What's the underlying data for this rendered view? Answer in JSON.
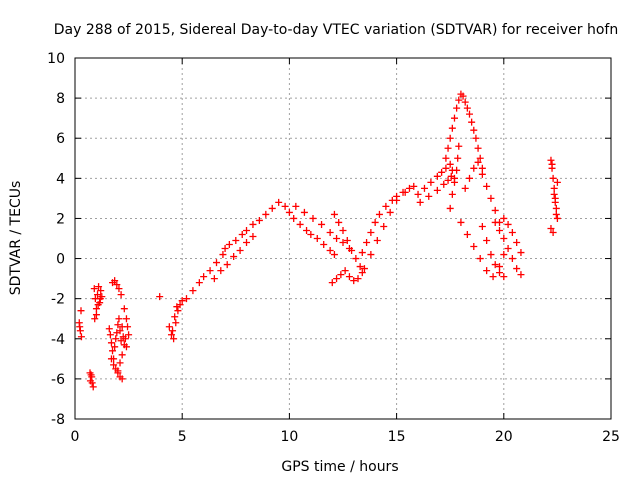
{
  "chart_data": {
    "type": "scatter",
    "title": "Day 288 of 2015, Sidereal Day-to-day VTEC variation (SDTVAR) for receiver hofn",
    "xlabel": "GPS time / hours",
    "ylabel": "SDTVAR / TECUs",
    "xlim": [
      0,
      25
    ],
    "ylim": [
      -8,
      10
    ],
    "x_ticks": [
      0,
      5,
      10,
      15,
      20,
      25
    ],
    "x_tick_labels": [
      "0",
      "5",
      "10",
      "15",
      "20",
      "25"
    ],
    "y_ticks": [
      -8,
      -6,
      -4,
      -2,
      0,
      2,
      4,
      6,
      8,
      10
    ],
    "y_tick_labels": [
      "-8",
      "-6",
      "-4",
      "-2",
      "0",
      "2",
      "4",
      "6",
      "8",
      "10"
    ],
    "grid": true,
    "marker": "+",
    "color": "#ff0000",
    "series": [
      {
        "name": "SDTVAR",
        "x": [
          0.2,
          0.25,
          0.3,
          0.22,
          0.28,
          0.7,
          0.75,
          0.8,
          0.85,
          0.72,
          0.78,
          0.9,
          0.95,
          1.0,
          1.05,
          1.1,
          1.15,
          1.2,
          1.25,
          0.92,
          1.0,
          1.08,
          1.18,
          1.6,
          1.65,
          1.7,
          1.75,
          1.8,
          1.85,
          1.9,
          1.95,
          2.0,
          2.05,
          2.1,
          2.15,
          2.2,
          2.25,
          2.3,
          2.35,
          2.4,
          1.7,
          1.8,
          1.9,
          2.0,
          2.1,
          2.2,
          1.75,
          1.85,
          1.95,
          2.05,
          2.15,
          2.0,
          2.1,
          2.2,
          2.3,
          2.4,
          2.45,
          2.5,
          3.95,
          4.4,
          4.5,
          4.6,
          4.7,
          4.8,
          4.9,
          5.0,
          4.55,
          4.65,
          4.75,
          5.2,
          5.5,
          5.8,
          6.0,
          6.3,
          6.6,
          6.9,
          7.0,
          7.2,
          7.5,
          7.8,
          8.0,
          8.3,
          8.6,
          8.9,
          9.2,
          9.5,
          9.8,
          10.0,
          6.5,
          6.8,
          7.1,
          7.4,
          7.7,
          8.0,
          8.3,
          10.2,
          10.5,
          10.8,
          11.0,
          11.3,
          11.6,
          11.9,
          12.1,
          10.3,
          10.7,
          11.1,
          11.5,
          11.9,
          12.2,
          12.5,
          12.8,
          12.0,
          12.2,
          12.4,
          12.6,
          12.8,
          13.0,
          13.2,
          13.4,
          12.1,
          12.3,
          12.5,
          12.7,
          12.9,
          13.1,
          13.3,
          13.4,
          13.6,
          13.8,
          14.0,
          14.2,
          14.5,
          14.8,
          15.0,
          15.3,
          15.6,
          13.5,
          13.8,
          14.1,
          14.4,
          14.7,
          15.0,
          15.4,
          15.8,
          16.0,
          16.3,
          16.6,
          16.9,
          17.1,
          17.3,
          17.5,
          17.6,
          17.7,
          16.1,
          16.5,
          16.9,
          17.2,
          17.4,
          17.55,
          17.3,
          17.4,
          17.5,
          17.6,
          17.7,
          17.8,
          17.9,
          18.0,
          18.1,
          18.2,
          18.3,
          18.4,
          18.5,
          18.6,
          18.7,
          18.8,
          18.9,
          19.0,
          17.5,
          17.6,
          17.7,
          17.8,
          17.85,
          17.9,
          18.0,
          18.3,
          18.6,
          18.9,
          19.2,
          19.5,
          19.8,
          20.0,
          18.2,
          18.4,
          18.6,
          18.8,
          19.0,
          19.2,
          19.4,
          19.6,
          19.8,
          19.0,
          19.2,
          19.4,
          19.6,
          19.8,
          20.0,
          19.6,
          19.8,
          20.0,
          20.2,
          20.4,
          20.6,
          20.8,
          20.0,
          20.2,
          20.4,
          20.6,
          20.8,
          22.2,
          22.25,
          22.3,
          22.35,
          22.4,
          22.45,
          22.5,
          22.2,
          22.3,
          22.4,
          22.5,
          22.25,
          22.35,
          22.45
        ],
        "y": [
          -3.2,
          -3.6,
          -3.9,
          -3.4,
          -2.6,
          -5.7,
          -5.8,
          -6.2,
          -6.4,
          -6.1,
          -5.9,
          -1.5,
          -2.0,
          -2.5,
          -1.8,
          -1.4,
          -2.2,
          -1.6,
          -1.9,
          -3.0,
          -2.8,
          -2.3,
          -2.0,
          -3.5,
          -3.8,
          -4.2,
          -4.6,
          -5.0,
          -4.4,
          -4.0,
          -3.7,
          -3.3,
          -3.0,
          -3.6,
          -4.1,
          -3.4,
          -3.9,
          -4.3,
          -4.0,
          -4.4,
          -5.0,
          -5.3,
          -5.5,
          -5.7,
          -5.9,
          -6.0,
          -1.2,
          -1.1,
          -1.3,
          -1.5,
          -1.8,
          -5.6,
          -5.2,
          -4.8,
          -2.5,
          -3.0,
          -3.4,
          -3.8,
          -1.9,
          -3.4,
          -3.8,
          -4.0,
          -3.2,
          -2.6,
          -2.3,
          -2.1,
          -3.6,
          -2.9,
          -2.4,
          -2.0,
          -1.6,
          -1.2,
          -0.9,
          -0.6,
          -0.2,
          0.2,
          0.5,
          0.7,
          0.9,
          1.2,
          1.4,
          1.7,
          1.9,
          2.2,
          2.5,
          2.8,
          2.6,
          2.3,
          -1.0,
          -0.6,
          -0.3,
          0.1,
          0.4,
          0.8,
          1.1,
          2.0,
          1.7,
          1.4,
          1.2,
          1.0,
          0.7,
          0.4,
          0.2,
          2.6,
          2.3,
          2.0,
          1.7,
          1.3,
          1.0,
          0.8,
          0.5,
          -1.2,
          -1.0,
          -0.8,
          -0.6,
          -0.9,
          -1.1,
          -1.0,
          -0.7,
          2.2,
          1.8,
          1.4,
          0.9,
          0.4,
          0.0,
          -0.4,
          0.3,
          0.8,
          1.3,
          1.8,
          2.2,
          2.6,
          2.9,
          3.1,
          3.3,
          3.5,
          -0.5,
          0.2,
          0.9,
          1.6,
          2.3,
          2.9,
          3.3,
          3.6,
          3.2,
          3.5,
          3.8,
          4.1,
          4.3,
          4.5,
          4.7,
          4.4,
          4.0,
          2.8,
          3.1,
          3.4,
          3.7,
          3.9,
          4.1,
          5.0,
          5.5,
          6.0,
          6.5,
          7.0,
          7.5,
          7.9,
          8.2,
          8.1,
          7.8,
          7.5,
          7.2,
          6.8,
          6.4,
          6.0,
          5.5,
          5.0,
          4.5,
          2.5,
          3.2,
          3.8,
          4.4,
          5.0,
          5.6,
          1.8,
          1.2,
          0.6,
          0.0,
          -0.6,
          -0.9,
          -0.4,
          0.2,
          3.5,
          4.0,
          4.5,
          4.8,
          4.2,
          3.6,
          3.0,
          2.4,
          1.8,
          1.6,
          0.9,
          0.2,
          -0.3,
          -0.7,
          -0.9,
          1.8,
          1.4,
          1.0,
          0.5,
          0.0,
          -0.5,
          -0.8,
          2.0,
          1.7,
          1.3,
          0.8,
          0.3,
          4.9,
          4.5,
          4.0,
          3.5,
          3.0,
          2.5,
          2.0,
          1.5,
          1.3,
          2.8,
          3.8,
          4.7,
          3.2,
          2.2
        ]
      }
    ]
  }
}
